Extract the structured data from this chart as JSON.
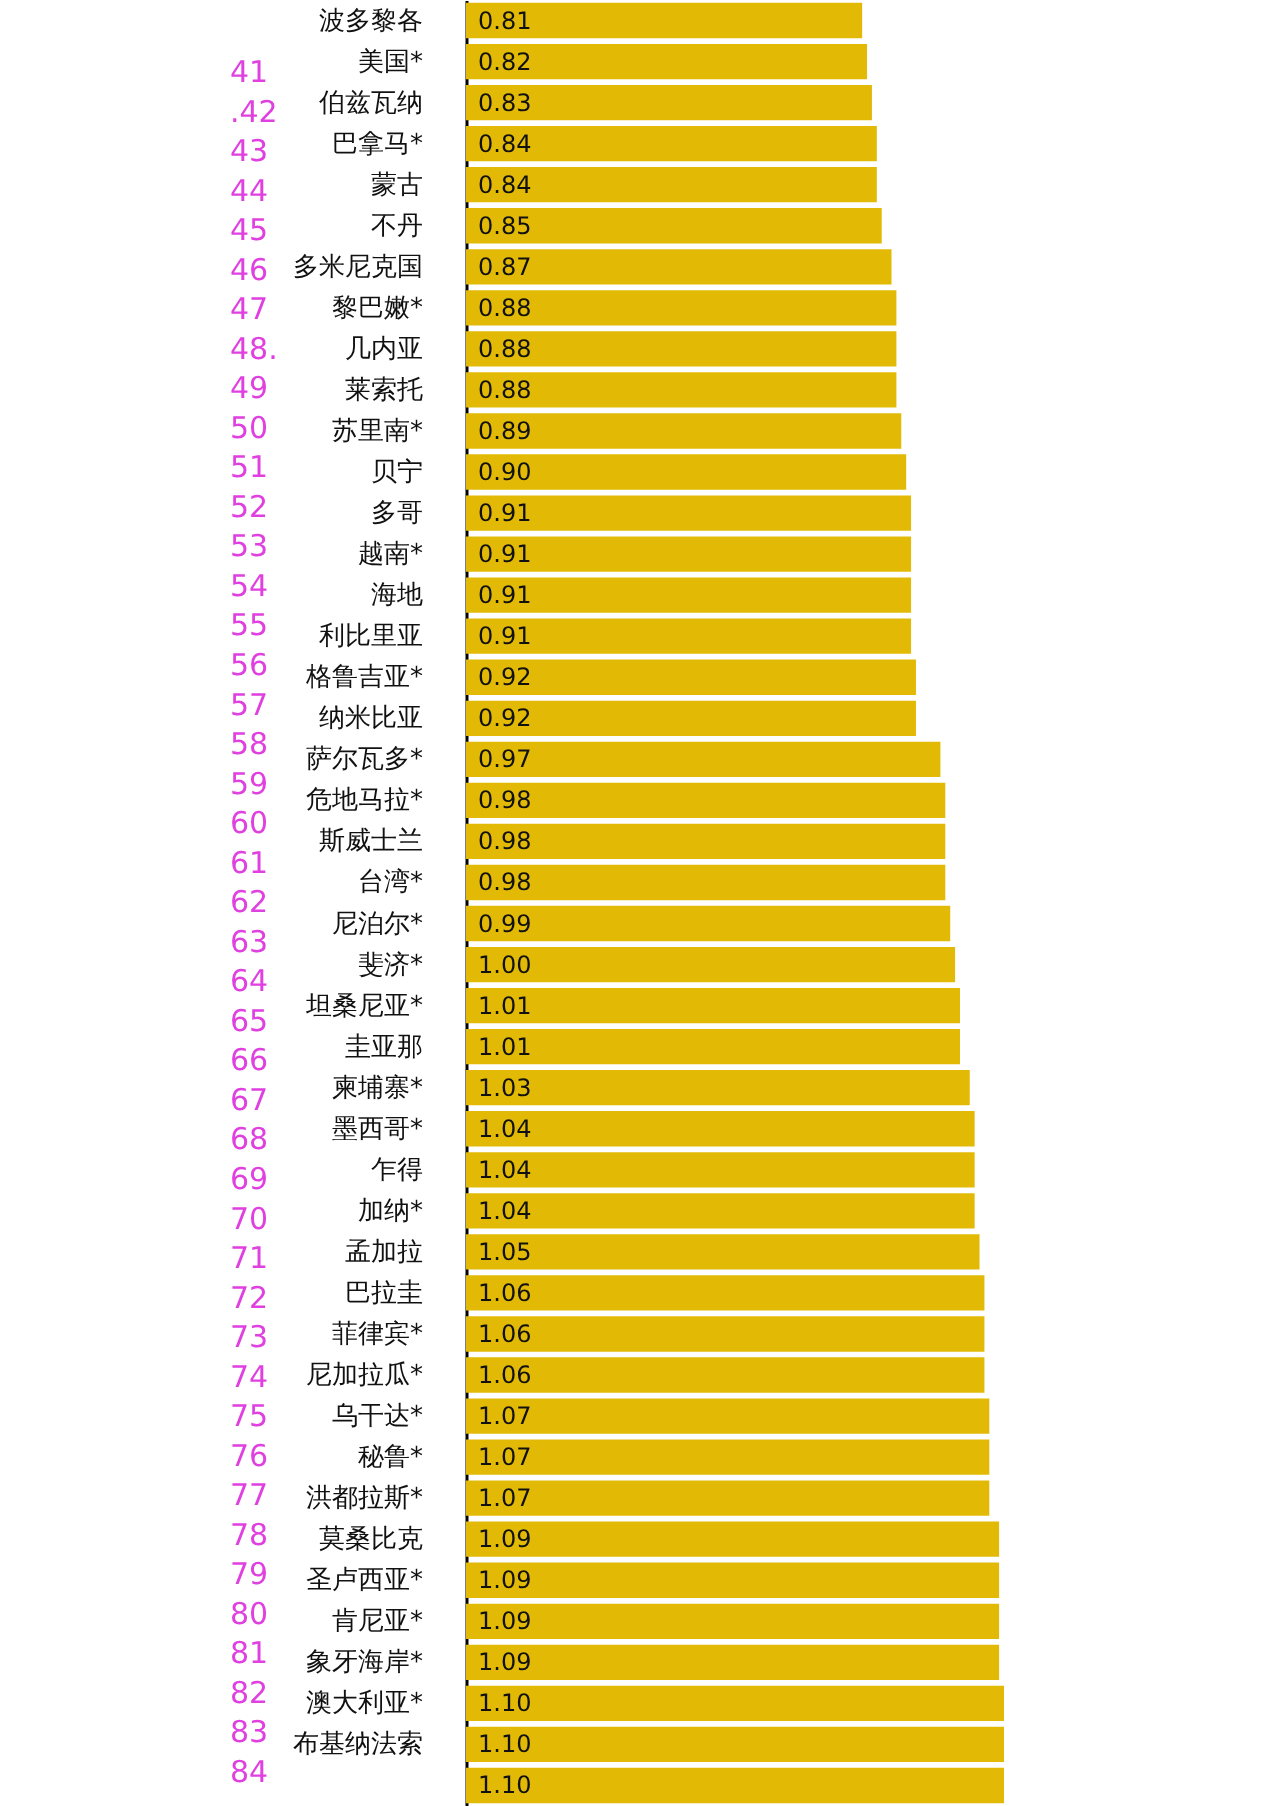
{
  "chart_data": {
    "type": "bar",
    "orientation": "horizontal",
    "color": "#e2ba06",
    "categories": [
      "波多黎各",
      "美国*",
      "伯兹瓦纳",
      "巴拿马*",
      "蒙古",
      "不丹",
      "多米尼克国",
      "黎巴嫩*",
      "几内亚",
      "莱索托",
      "苏里南*",
      "贝宁",
      "多哥",
      "越南*",
      "海地",
      "利比里亚",
      "格鲁吉亚*",
      "纳米比亚",
      "萨尔瓦多*",
      "危地马拉*",
      "斯威士兰",
      "台湾*",
      "尼泊尔*",
      "斐济*",
      "坦桑尼亚*",
      "圭亚那",
      "柬埔寨*",
      "墨西哥*",
      "乍得",
      "加纳*",
      "孟加拉",
      "巴拉圭",
      "菲律宾*",
      "尼加拉瓜*",
      "乌干达*",
      "秘鲁*",
      "洪都拉斯*",
      "莫桑比克",
      "圣卢西亚*",
      "肯尼亚*",
      "象牙海岸*",
      "澳大利亚*",
      "布基纳法索",
      null
    ],
    "values": [
      0.81,
      0.82,
      0.83,
      0.84,
      0.84,
      0.85,
      0.87,
      0.88,
      0.88,
      0.88,
      0.89,
      0.9,
      0.91,
      0.91,
      0.91,
      0.91,
      0.92,
      0.92,
      0.97,
      0.98,
      0.98,
      0.98,
      0.99,
      1.0,
      1.01,
      1.01,
      1.03,
      1.04,
      1.04,
      1.04,
      1.05,
      1.06,
      1.06,
      1.06,
      1.07,
      1.07,
      1.07,
      1.09,
      1.09,
      1.09,
      1.09,
      1.1,
      1.1,
      1.1
    ],
    "value_labels": [
      "0.81",
      "0.82",
      "0.83",
      "0.84",
      "0.84",
      "0.85",
      "0.87",
      "0.88",
      "0.88",
      "0.88",
      "0.89",
      "0.90",
      "0.91",
      "0.91",
      "0.91",
      "0.91",
      "0.92",
      "0.92",
      "0.97",
      "0.98",
      "0.98",
      "0.98",
      "0.99",
      "1.00",
      "1.01",
      "1.01",
      "1.03",
      "1.04",
      "1.04",
      "1.04",
      "1.05",
      "1.06",
      "1.06",
      "1.06",
      "1.07",
      "1.07",
      "1.07",
      "1.09",
      "1.09",
      "1.09",
      "1.09",
      "1.10",
      "1.10",
      "1.10"
    ],
    "annotations": [
      "41",
      ".42",
      "43",
      "44",
      "45",
      "46",
      "47",
      "48.",
      "49",
      "50",
      "51",
      "52",
      "53",
      "54",
      "55",
      "56",
      "57",
      "58",
      "59",
      "60",
      "61",
      "62",
      "63",
      "64",
      "65",
      "66",
      "67",
      "68",
      "69",
      "70",
      "71",
      "72",
      "73",
      "74",
      "75",
      "76",
      "77",
      "78",
      "79",
      "80",
      "81",
      "82",
      "83",
      "84"
    ]
  }
}
